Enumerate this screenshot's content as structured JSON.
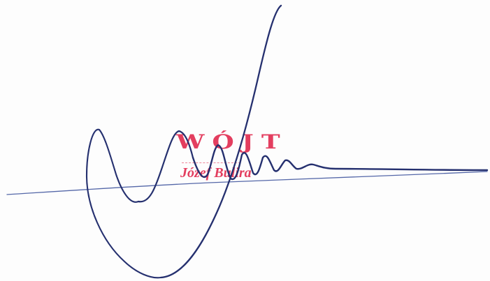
{
  "stamp": {
    "title": "WÓJT",
    "name": "Józef Bulira"
  },
  "colors": {
    "stamp_red": "#e0244a",
    "ink_blue": "#25306f",
    "ink_blue_light": "#5467a8",
    "paper": "#fdfdfd"
  },
  "icons": {
    "signature": "handwritten-signature-icon"
  }
}
